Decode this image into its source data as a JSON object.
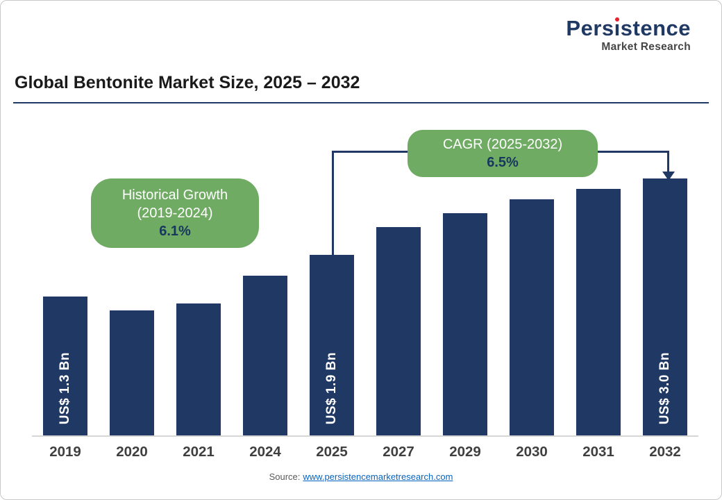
{
  "logo": {
    "name_pre": "Pers",
    "name_i": "ı",
    "name_post": "stence",
    "subtitle": "Market Research"
  },
  "title": "Global Bentonite Market Size, 2025 – 2032",
  "annotations": {
    "historical": {
      "line1": "Historical Growth",
      "line2": "(2019-2024)",
      "value": "6.1%"
    },
    "cagr": {
      "line1": "CAGR (2025-2032)",
      "value": "6.5%"
    }
  },
  "source": {
    "prefix": "Source:",
    "link": "www.persistencemarketresearch.com"
  },
  "colors": {
    "bar": "#1F3864",
    "navy": "#1F3864",
    "green": "#6FAB63",
    "red": "#E8212E",
    "link": "#0563C1"
  },
  "chart_data": {
    "type": "bar",
    "title": "Global Bentonite Market Size, 2025 – 2032",
    "categories": [
      "2019",
      "2020",
      "2021",
      "2024",
      "2025",
      "2027",
      "2029",
      "2030",
      "2031",
      "2032"
    ],
    "values": [
      1.3,
      1.1,
      1.2,
      1.6,
      1.9,
      2.3,
      2.5,
      2.7,
      2.85,
      3.0
    ],
    "bar_labels": [
      "US$ 1.3 Bn",
      "",
      "",
      "",
      "US$ 1.9 Bn",
      "",
      "",
      "",
      "",
      "US$ 3.0 Bn"
    ],
    "unit": "US$ Bn",
    "xlabel": "",
    "ylabel": "",
    "ylim": [
      0,
      3.2
    ],
    "grid": false,
    "legend_position": "none",
    "y_axis_visible": false
  }
}
